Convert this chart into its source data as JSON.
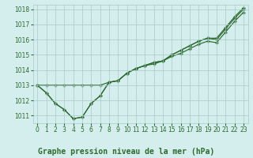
{
  "x": [
    0,
    1,
    2,
    3,
    4,
    5,
    6,
    7,
    8,
    9,
    10,
    11,
    12,
    13,
    14,
    15,
    16,
    17,
    18,
    19,
    20,
    21,
    22,
    23
  ],
  "line1": [
    1013.0,
    1012.5,
    1011.8,
    1011.4,
    1010.8,
    1010.9,
    1011.8,
    1012.3,
    1013.2,
    1013.3,
    1013.8,
    1014.1,
    1014.3,
    1014.4,
    1014.6,
    1014.9,
    1015.1,
    1015.4,
    1015.7,
    1015.9,
    1015.8,
    1016.5,
    1017.2,
    1017.8
  ],
  "line2": [
    1013.0,
    1012.5,
    1011.8,
    1011.4,
    1010.8,
    1010.9,
    1011.8,
    1012.3,
    1013.2,
    1013.3,
    1013.8,
    1014.1,
    1014.3,
    1014.5,
    1014.6,
    1015.0,
    1015.3,
    1015.6,
    1015.9,
    1016.1,
    1016.0,
    1016.7,
    1017.4,
    1018.0
  ],
  "line3": [
    1013.0,
    1013.0,
    1013.0,
    1013.0,
    1013.0,
    1013.0,
    1013.0,
    1013.0,
    1013.2,
    1013.3,
    1013.8,
    1014.1,
    1014.3,
    1014.5,
    1014.6,
    1015.0,
    1015.3,
    1015.6,
    1015.9,
    1016.1,
    1016.1,
    1016.8,
    1017.5,
    1018.1
  ],
  "ylim": [
    1010.5,
    1018.3
  ],
  "yticks": [
    1011,
    1012,
    1013,
    1014,
    1015,
    1016,
    1017,
    1018
  ],
  "xticks": [
    0,
    1,
    2,
    3,
    4,
    5,
    6,
    7,
    8,
    9,
    10,
    11,
    12,
    13,
    14,
    15,
    16,
    17,
    18,
    19,
    20,
    21,
    22,
    23
  ],
  "line_color": "#2d6a2d",
  "bg_color": "#d4eeee",
  "grid_color": "#aacaca",
  "xlabel": "Graphe pression niveau de la mer (hPa)",
  "tick_color": "#2d6a2d",
  "tick_fontsize": 5.5,
  "label_fontsize": 7.0
}
